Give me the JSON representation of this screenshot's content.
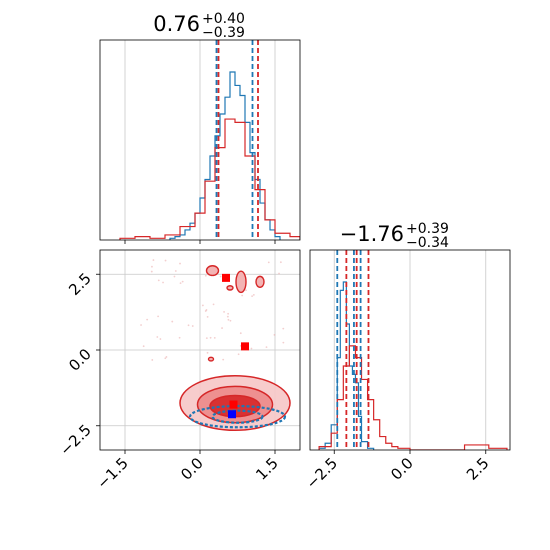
{
  "colors": {
    "red": "#d62728",
    "blue": "#1f77b4",
    "grid": "#c8c8c8",
    "truth": "#0000ff"
  },
  "chart_data": [
    {
      "type": "histogram",
      "panel": "marginal-x",
      "title": {
        "value": "0.76",
        "plus": "+0.40",
        "minus": "−0.39"
      },
      "xlim": [
        -2.0,
        2.0
      ],
      "grid": true,
      "quantile_lines": {
        "blue": [
          0.33,
          1.05
        ],
        "red": [
          0.37,
          1.16
        ]
      },
      "series": [
        {
          "color": "blue",
          "bin_edges": [
            -0.6,
            -0.5,
            -0.4,
            -0.3,
            -0.2,
            -0.1,
            0.0,
            0.1,
            0.2,
            0.3,
            0.4,
            0.5,
            0.6,
            0.7,
            0.8,
            0.9,
            1.0,
            1.1,
            1.2,
            1.3,
            1.4,
            1.5,
            1.6
          ],
          "counts": [
            0.01,
            0.02,
            0.03,
            0.06,
            0.1,
            0.16,
            0.25,
            0.36,
            0.5,
            0.62,
            0.75,
            0.85,
            1.0,
            0.92,
            0.86,
            0.7,
            0.52,
            0.36,
            0.22,
            0.12,
            0.06,
            0.02
          ]
        },
        {
          "color": "red",
          "bin_edges": [
            -1.6,
            -1.3,
            -1.0,
            -0.7,
            -0.4,
            -0.1,
            0.1,
            0.3,
            0.5,
            0.7,
            0.9,
            1.1,
            1.3,
            1.5,
            1.8,
            2.0
          ],
          "counts": [
            0.01,
            0.02,
            0.01,
            0.03,
            0.08,
            0.16,
            0.35,
            0.55,
            0.72,
            0.7,
            0.5,
            0.3,
            0.12,
            0.04,
            0.02
          ]
        }
      ]
    },
    {
      "type": "histogram",
      "panel": "marginal-y",
      "title": {
        "value": "−1.76",
        "plus": "+0.39",
        "minus": "−0.34"
      },
      "xlim": [
        -3.3,
        3.3
      ],
      "xticks": [
        "−2.5",
        "0.0",
        "2.5"
      ],
      "grid": true,
      "quantile_lines": {
        "blue": [
          -2.4,
          -1.85,
          -1.63
        ],
        "red": [
          -2.1,
          -1.76,
          -1.37
        ]
      },
      "series": [
        {
          "color": "blue",
          "bin_edges": [
            -3.0,
            -2.8,
            -2.6,
            -2.4,
            -2.3,
            -2.2,
            -2.1,
            -2.0,
            -1.9,
            -1.8,
            -1.7,
            -1.6,
            -1.4,
            -1.2
          ],
          "counts": [
            0.01,
            0.04,
            0.15,
            0.55,
            0.95,
            1.0,
            0.75,
            0.5,
            0.45,
            0.4,
            0.2,
            0.05,
            0.01
          ]
        },
        {
          "color": "red",
          "bin_edges": [
            -3.0,
            -2.6,
            -2.4,
            -2.2,
            -2.0,
            -1.8,
            -1.6,
            -1.4,
            -1.2,
            -1.0,
            -0.8,
            -0.6,
            -0.4,
            0.0,
            1.8,
            2.6,
            3.2
          ],
          "counts": [
            0.02,
            0.1,
            0.3,
            0.5,
            0.62,
            0.55,
            0.42,
            0.3,
            0.18,
            0.08,
            0.04,
            0.02,
            0.01,
            0.0,
            0.03,
            0.01
          ]
        }
      ]
    },
    {
      "type": "contour",
      "panel": "joint",
      "xlim": [
        -2.0,
        2.0
      ],
      "ylim": [
        -3.3,
        3.3
      ],
      "xticks": [
        "−1.5",
        "0.0",
        "1.5"
      ],
      "yticks": [
        "2.5",
        "0.0",
        "−2.5"
      ],
      "grid": true,
      "red_contours": [
        {
          "cx": 0.7,
          "cy": -1.75,
          "rx": 1.1,
          "ry": 0.9
        },
        {
          "cx": 0.7,
          "cy": -1.8,
          "rx": 0.75,
          "ry": 0.6
        },
        {
          "cx": 0.7,
          "cy": -1.85,
          "rx": 0.5,
          "ry": 0.35
        }
      ],
      "blue_contours": [
        {
          "cx": 0.75,
          "cy": -2.2,
          "rx": 0.95,
          "ry": 0.35
        },
        {
          "cx": 0.75,
          "cy": -2.2,
          "rx": 0.5,
          "ry": 0.2
        }
      ],
      "red_islands": [
        {
          "cx": 0.25,
          "cy": 2.62,
          "rx": 0.12,
          "ry": 0.16
        },
        {
          "cx": 0.82,
          "cy": 2.25,
          "rx": 0.1,
          "ry": 0.35
        },
        {
          "cx": 1.2,
          "cy": 2.25,
          "rx": 0.08,
          "ry": 0.18
        },
        {
          "cx": 0.6,
          "cy": 2.05,
          "rx": 0.06,
          "ry": 0.07
        },
        {
          "cx": 0.22,
          "cy": -0.3,
          "rx": 0.05,
          "ry": 0.06
        }
      ],
      "red_markers": [
        {
          "x": 0.52,
          "y": 2.38
        },
        {
          "x": 0.9,
          "y": 0.12
        },
        {
          "x": 0.67,
          "y": -1.8
        }
      ],
      "truth_marker": {
        "x": 0.64,
        "y": -2.12
      }
    }
  ]
}
